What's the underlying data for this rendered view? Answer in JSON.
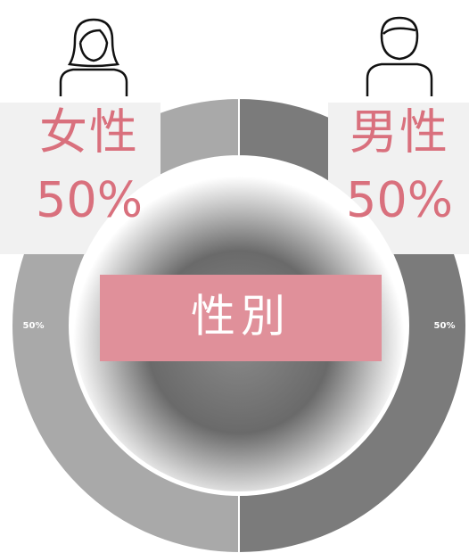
{
  "chart_data": {
    "type": "donut",
    "title": "性別",
    "categories": [
      "女性",
      "男性"
    ],
    "values": [
      50,
      50
    ],
    "value_labels": [
      "50%",
      "50%"
    ],
    "colors": [
      "#a9a9a9",
      "#7b7b7b"
    ],
    "label_color": "#d9707d"
  }
}
